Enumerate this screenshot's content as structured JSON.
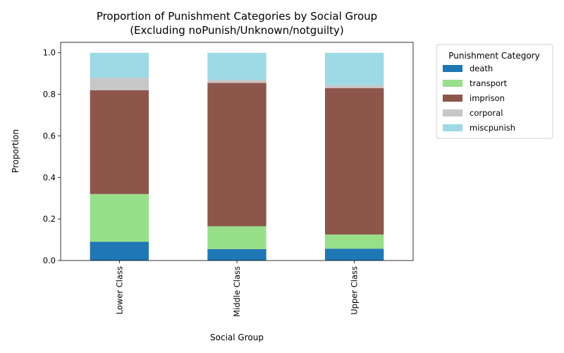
{
  "chart_data": {
    "type": "bar",
    "stacked": true,
    "title_line1": "Proportion of Punishment Categories by Social Group",
    "title_line2": "(Excluding noPunish/Unknown/notguilty)",
    "xlabel": "Social Group",
    "ylabel": "Proportion",
    "ylim": [
      0,
      1.05
    ],
    "yticks": [
      "0.0",
      "0.2",
      "0.4",
      "0.6",
      "0.8",
      "1.0"
    ],
    "categories": [
      "Lower Class",
      "Middle Class",
      "Upper Class"
    ],
    "legend": {
      "title": "Punishment Category",
      "placement": "outside-right"
    },
    "series": [
      {
        "name": "death",
        "color": "#1f77b4",
        "values": [
          0.09,
          0.055,
          0.057
        ]
      },
      {
        "name": "transport",
        "color": "#98df8a",
        "values": [
          0.23,
          0.11,
          0.068
        ]
      },
      {
        "name": "imprison",
        "color": "#8c564b",
        "values": [
          0.5,
          0.69,
          0.705
        ]
      },
      {
        "name": "corporal",
        "color": "#c7c7c7",
        "values": [
          0.06,
          0.015,
          0.015
        ]
      },
      {
        "name": "miscpunish",
        "color": "#9edae5",
        "values": [
          0.12,
          0.13,
          0.155
        ]
      }
    ]
  }
}
